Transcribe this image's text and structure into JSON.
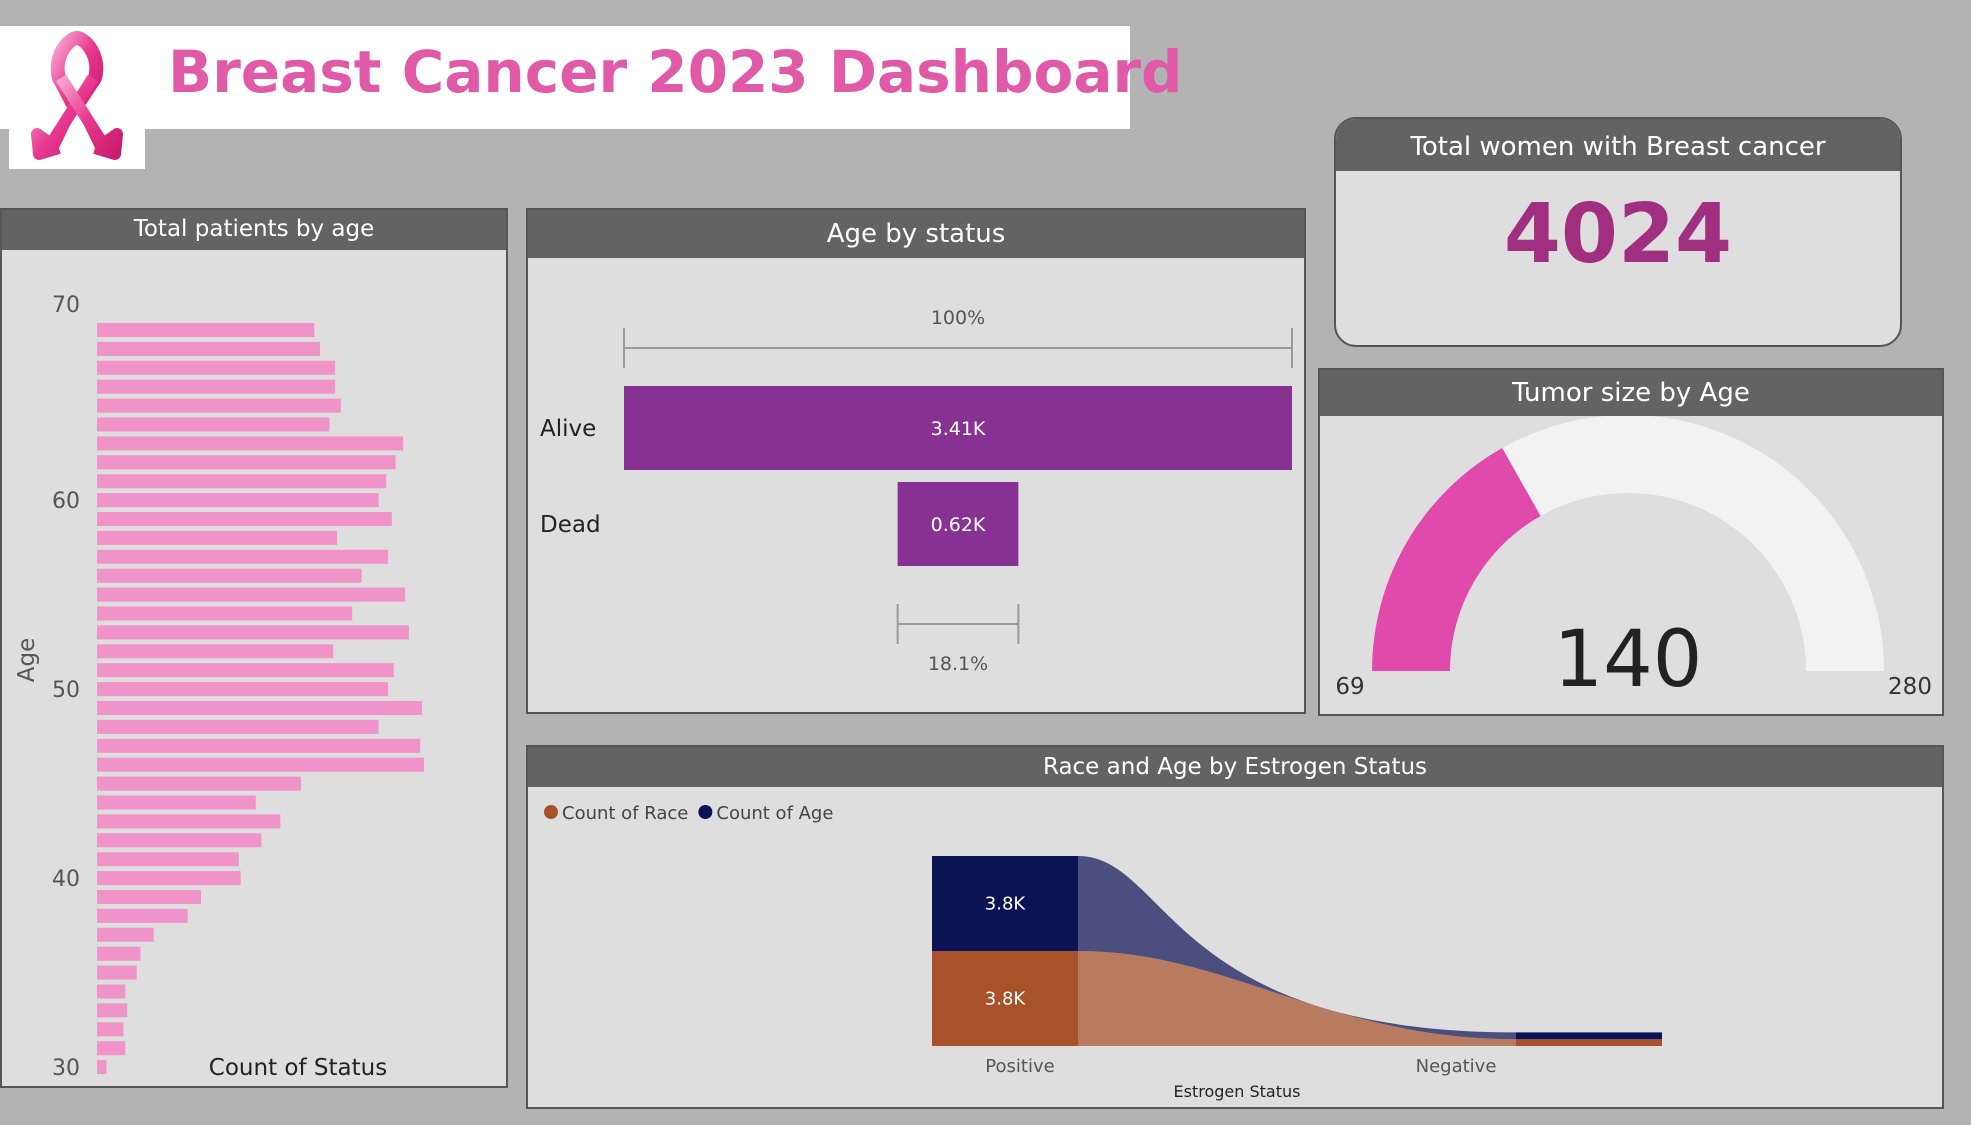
{
  "header": {
    "title": "Breast Cancer 2023 Dashboard",
    "logo_icon": "pink-ribbon-icon",
    "accent_color": "#e05aa8"
  },
  "kpi": {
    "title": "Total women with Breast cancer",
    "value": "4024",
    "value_color": "#a0307f"
  },
  "gauge": {
    "title": "Tumor size by Age",
    "min": 69,
    "max": 280,
    "value": 140,
    "min_label": "69",
    "max_label": "280",
    "value_label": "140",
    "fill_color": "#e04aaa",
    "track_color": "#f2f2f2"
  },
  "chart_data": [
    {
      "type": "bar",
      "orientation": "horizontal",
      "title": "Total patients by age",
      "xlabel": "Count of Status",
      "ylabel": "Age",
      "y_ticks": [
        "70",
        "60",
        "50",
        "40",
        "30"
      ],
      "ylim": [
        30,
        69
      ],
      "color": "#ef93c8",
      "categories": [
        69,
        68,
        67,
        66,
        65,
        64,
        63,
        62,
        61,
        60,
        59,
        58,
        57,
        56,
        55,
        54,
        53,
        52,
        51,
        50,
        49,
        48,
        47,
        46,
        45,
        44,
        43,
        42,
        41,
        40,
        39,
        38,
        37,
        36,
        35,
        34,
        33,
        32,
        31,
        30
      ],
      "values": [
        115,
        118,
        126,
        126,
        129,
        123,
        162,
        158,
        153,
        149,
        156,
        127,
        154,
        140,
        163,
        135,
        165,
        125,
        157,
        154,
        172,
        149,
        171,
        173,
        108,
        84,
        97,
        87,
        75,
        76,
        55,
        48,
        30,
        23,
        21,
        15,
        16,
        14,
        15,
        5
      ]
    },
    {
      "type": "funnel",
      "title": "Age by status",
      "categories": [
        "Alive",
        "Dead"
      ],
      "values": [
        3408,
        616
      ],
      "value_labels": [
        "3.41K",
        "0.62K"
      ],
      "top_percent": "100%",
      "bottom_percent": "18.1%",
      "color": "#873293"
    },
    {
      "type": "area",
      "stacked": true,
      "title": "Race and Age by Estrogen Status",
      "xlabel": "Estrogen Status",
      "categories": [
        "Positive",
        "Negative"
      ],
      "series": [
        {
          "name": "Count of Race",
          "values": [
            3755,
            269
          ],
          "color": "#a9512b",
          "value_label": "3.8K"
        },
        {
          "name": "Count of Age",
          "values": [
            3755,
            269
          ],
          "color": "#0c1354",
          "value_label": "3.8K"
        }
      ]
    }
  ]
}
